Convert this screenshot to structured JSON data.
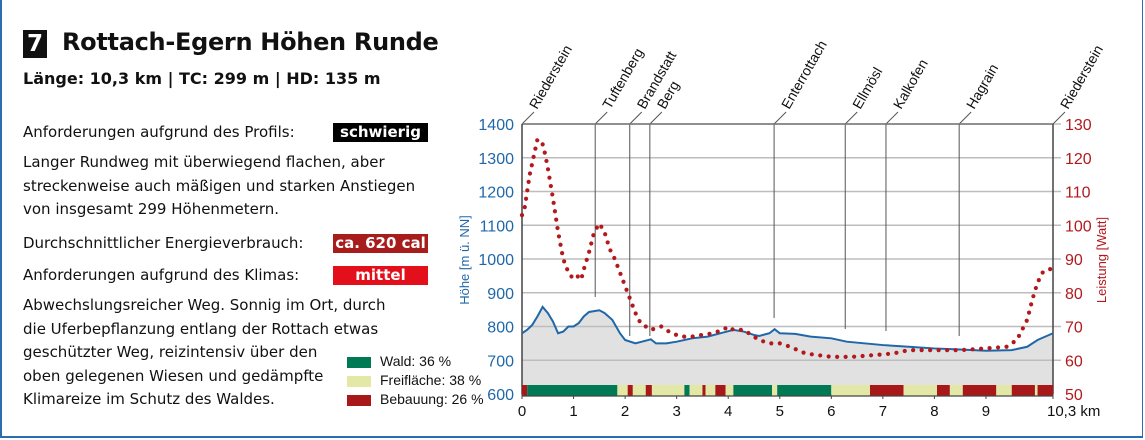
{
  "header": {
    "number": "7",
    "title": "Rottach-Egern Höhen Runde",
    "stats": "Länge: 10,3 km | TC: 299 m | HD: 135 m"
  },
  "requirements": {
    "profile_label": "Anforderungen aufgrund des Profils:",
    "profile_value": "schwierig",
    "profile_text": [
      "Langer Rundweg mit überwiegend flachen, aber",
      "streckenweise auch mäßigen und starken Anstiegen",
      "von insgesamt 299 Höhenmetern."
    ],
    "energy_label": "Durchschnittlicher Energieverbrauch:",
    "energy_value": "ca. 620 cal",
    "climate_label": "Anforderungen aufgrund des Klimas:",
    "climate_value": "mittel",
    "climate_text": [
      "Abwechslungsreicher Weg. Sonnig im Ort, durch",
      "die Uferbepflanzung entlang der Rottach etwas",
      "geschützter Weg, reizintensiv über den",
      "oben gelegenen Wiesen und gedämpfte",
      "Klimareize im Schutz des Waldes."
    ]
  },
  "colors": {
    "profile": "#000000",
    "energy": "#a81c1c",
    "climate": "#e3101b",
    "wald": "#007a55",
    "frei": "#e3e8a6",
    "bebauung": "#a81818",
    "elev": "#1f67a8",
    "power": "#b3191c"
  },
  "chart_data": {
    "type": "line",
    "xlabel": "km",
    "x_ticks": [
      "0",
      "1",
      "2",
      "3",
      "4",
      "5",
      "6",
      "7",
      "8",
      "9",
      "10,3 km"
    ],
    "x_tick_values": [
      0,
      1,
      2,
      3,
      4,
      5,
      6,
      7,
      8,
      9,
      10.3
    ],
    "xlim": [
      0,
      10.3
    ],
    "ylabel_left": "Höhe [m ü. NN]",
    "ylim_left": [
      600,
      1400
    ],
    "y_ticks_left": [
      "600",
      "700",
      "800",
      "900",
      "1000",
      "1100",
      "1200",
      "1300",
      "1400"
    ],
    "ylabel_right": "Leistung [Watt]",
    "ylim_right": [
      50,
      130
    ],
    "y_ticks_right": [
      "50",
      "60",
      "70",
      "80",
      "90",
      "100",
      "110",
      "120",
      "130"
    ],
    "landmarks": [
      {
        "name": "Riederstein",
        "km": 0
      },
      {
        "name": "Tuftenberg",
        "km": 1.42
      },
      {
        "name": "Brandstatt",
        "km": 2.09
      },
      {
        "name": "Berg",
        "km": 2.48
      },
      {
        "name": "Enterrottach",
        "km": 4.89
      },
      {
        "name": "Ellmösl",
        "km": 6.27
      },
      {
        "name": "Kalkofen",
        "km": 7.06
      },
      {
        "name": "Hagrain",
        "km": 8.48
      },
      {
        "name": "Riederstein",
        "km": 10.3
      }
    ],
    "series": [
      {
        "name": "Höhe",
        "axis": "left",
        "style": "line",
        "x": [
          0,
          0.1,
          0.2,
          0.3,
          0.4,
          0.5,
          0.6,
          0.7,
          0.8,
          0.9,
          1.0,
          1.1,
          1.2,
          1.3,
          1.5,
          1.6,
          1.75,
          1.9,
          2.0,
          2.2,
          2.4,
          2.5,
          2.6,
          2.8,
          3.0,
          3.3,
          3.6,
          3.9,
          4.1,
          4.3,
          4.5,
          4.6,
          4.8,
          4.9,
          5.0,
          5.3,
          5.6,
          6.0,
          6.3,
          7.0,
          7.5,
          8.0,
          8.5,
          9.0,
          9.5,
          9.8,
          10.0,
          10.3
        ],
        "y": [
          780,
          790,
          805,
          830,
          858,
          840,
          815,
          780,
          785,
          800,
          800,
          810,
          830,
          843,
          848,
          840,
          820,
          780,
          760,
          750,
          758,
          762,
          750,
          750,
          755,
          765,
          770,
          782,
          790,
          785,
          775,
          772,
          780,
          792,
          780,
          778,
          770,
          765,
          755,
          745,
          740,
          735,
          732,
          728,
          730,
          740,
          760,
          780
        ]
      },
      {
        "name": "Leistung",
        "axis": "right",
        "style": "dotted",
        "x": [
          0,
          0.05,
          0.1,
          0.15,
          0.25,
          0.3,
          0.4,
          0.45,
          0.5,
          0.6,
          0.7,
          0.8,
          0.9,
          1.0,
          1.1,
          1.15,
          1.2,
          1.3,
          1.4,
          1.5,
          1.6,
          1.7,
          1.8,
          1.9,
          2.0,
          2.1,
          2.2,
          2.3,
          2.4,
          2.5,
          2.7,
          2.8,
          2.9,
          3.1,
          3.3,
          3.5,
          3.7,
          3.9,
          4.0,
          4.1,
          4.3,
          4.4,
          4.6,
          4.8,
          5.0,
          5.2,
          5.5,
          6.0,
          6.4,
          6.8,
          7.2,
          7.5,
          8.0,
          8.5,
          9.0,
          9.4,
          9.6,
          9.8,
          9.9,
          10.0,
          10.1,
          10.2,
          10.3
        ],
        "y": [
          103,
          105,
          110,
          115,
          122,
          125.5,
          124,
          121,
          117,
          108,
          98,
          90,
          86,
          84,
          85,
          84,
          87,
          92,
          98,
          100.5,
          98,
          93,
          90,
          86,
          82,
          78,
          74,
          71,
          70,
          69,
          70,
          69,
          68,
          67,
          67,
          67.5,
          68,
          69,
          70,
          69,
          69,
          68,
          66,
          65,
          65,
          64,
          62,
          61,
          61,
          61.5,
          62,
          63,
          63,
          63,
          63.5,
          64,
          66,
          72,
          78,
          83,
          86,
          87,
          87
        ]
      }
    ],
    "landcover": {
      "legend": [
        {
          "key": "wald",
          "label": "Wald: 36 %"
        },
        {
          "key": "frei",
          "label": "Freifläche: 38 %"
        },
        {
          "key": "bebauung",
          "label": "Bebauung: 26 %"
        }
      ],
      "segments": [
        [
          0,
          0.1,
          "bebauung"
        ],
        [
          0.1,
          1.85,
          "wald"
        ],
        [
          1.85,
          2.05,
          "frei"
        ],
        [
          2.05,
          2.15,
          "bebauung"
        ],
        [
          2.15,
          2.4,
          "frei"
        ],
        [
          2.4,
          2.52,
          "bebauung"
        ],
        [
          2.52,
          3.15,
          "frei"
        ],
        [
          3.15,
          3.25,
          "wald"
        ],
        [
          3.25,
          3.5,
          "frei"
        ],
        [
          3.5,
          3.56,
          "bebauung"
        ],
        [
          3.56,
          3.75,
          "frei"
        ],
        [
          3.75,
          3.95,
          "bebauung"
        ],
        [
          3.95,
          4.1,
          "frei"
        ],
        [
          4.1,
          4.85,
          "wald"
        ],
        [
          4.85,
          4.95,
          "frei"
        ],
        [
          4.95,
          6.0,
          "wald"
        ],
        [
          6.0,
          6.75,
          "frei"
        ],
        [
          6.75,
          7.4,
          "bebauung"
        ],
        [
          7.4,
          8.05,
          "frei"
        ],
        [
          8.05,
          8.3,
          "bebauung"
        ],
        [
          8.3,
          8.55,
          "frei"
        ],
        [
          8.55,
          9.2,
          "bebauung"
        ],
        [
          9.2,
          9.5,
          "frei"
        ],
        [
          9.5,
          9.95,
          "bebauung"
        ],
        [
          9.95,
          10.0,
          "frei"
        ],
        [
          10.0,
          10.3,
          "bebauung"
        ]
      ]
    }
  }
}
